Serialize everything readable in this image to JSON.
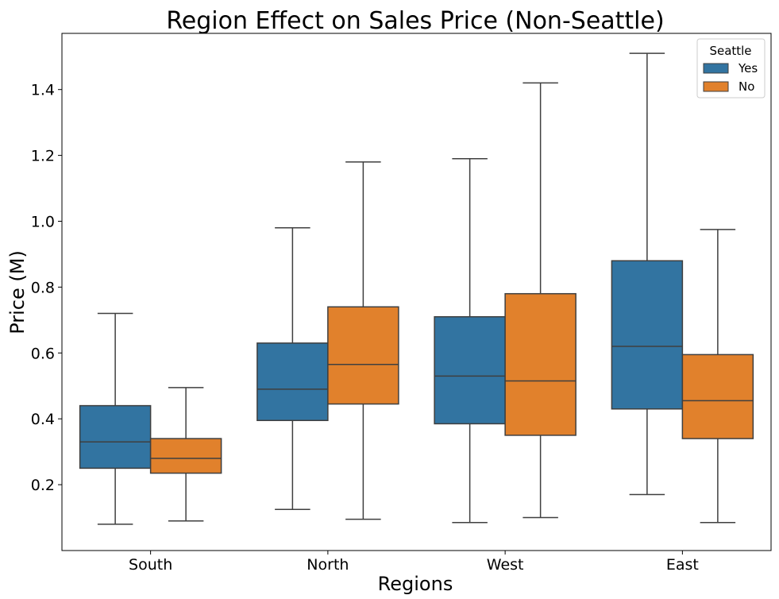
{
  "chart_data": {
    "type": "box",
    "title": "Region Effect on Sales Price (Non-Seattle)",
    "xlabel": "Regions",
    "ylabel": "Price (M)",
    "categories": [
      "South",
      "North",
      "West",
      "East"
    ],
    "ylim": [
      0,
      1.57
    ],
    "yticks": [
      0.2,
      0.4,
      0.6,
      0.8,
      1.0,
      1.2,
      1.4
    ],
    "ytick_labels": [
      "0.2",
      "0.4",
      "0.6",
      "0.8",
      "1.0",
      "1.2",
      "1.4"
    ],
    "legend": {
      "title": "Seattle",
      "placement": "top-right"
    },
    "series": [
      {
        "name": "Yes",
        "color": "#3274a1",
        "boxes": [
          {
            "whislo": 0.08,
            "q1": 0.25,
            "med": 0.33,
            "q3": 0.44,
            "whishi": 0.72
          },
          {
            "whislo": 0.125,
            "q1": 0.395,
            "med": 0.49,
            "q3": 0.63,
            "whishi": 0.98
          },
          {
            "whislo": 0.085,
            "q1": 0.385,
            "med": 0.53,
            "q3": 0.71,
            "whishi": 1.19
          },
          {
            "whislo": 0.17,
            "q1": 0.43,
            "med": 0.62,
            "q3": 0.88,
            "whishi": 1.51
          }
        ]
      },
      {
        "name": "No",
        "color": "#e1812c",
        "boxes": [
          {
            "whislo": 0.09,
            "q1": 0.235,
            "med": 0.28,
            "q3": 0.34,
            "whishi": 0.495
          },
          {
            "whislo": 0.095,
            "q1": 0.445,
            "med": 0.565,
            "q3": 0.74,
            "whishi": 1.18
          },
          {
            "whislo": 0.1,
            "q1": 0.35,
            "med": 0.515,
            "q3": 0.78,
            "whishi": 1.42
          },
          {
            "whislo": 0.085,
            "q1": 0.34,
            "med": 0.455,
            "q3": 0.595,
            "whishi": 0.975
          }
        ]
      }
    ]
  }
}
